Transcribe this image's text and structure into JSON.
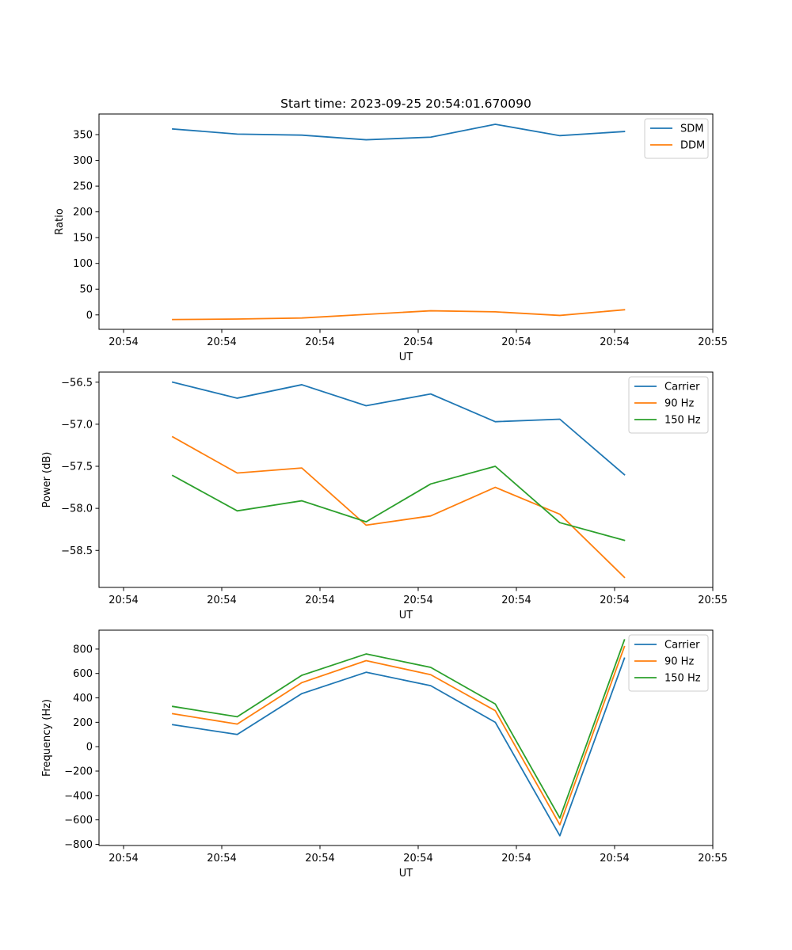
{
  "figure_title": "Start time: 2023-09-25 20:54:01.670090",
  "chart_data": [
    {
      "type": "line",
      "title": "Start time: 2023-09-25 20:54:01.670090",
      "xlabel": "UT",
      "ylabel": "Ratio",
      "xlim": [
        0,
        12.5
      ],
      "ylim": [
        -28,
        390
      ],
      "x_ticks": [
        0.5,
        2.5,
        4.5,
        6.5,
        8.5,
        10.5,
        12.5
      ],
      "x_tick_labels": [
        "20:54",
        "20:54",
        "20:54",
        "20:54",
        "20:54",
        "20:54",
        "20:55"
      ],
      "y_ticks": [
        0,
        50,
        100,
        150,
        200,
        250,
        300,
        350
      ],
      "y_tick_labels": [
        "0",
        "50",
        "100",
        "150",
        "200",
        "250",
        "300",
        "350"
      ],
      "legend_position": "top-right",
      "x": [
        1.5,
        2.815,
        4.13,
        5.44,
        6.755,
        8.07,
        9.385,
        10.7
      ],
      "series": [
        {
          "name": "SDM",
          "color": "#1f77b4",
          "values": [
            361,
            351,
            349,
            340,
            345,
            370,
            348,
            356
          ]
        },
        {
          "name": "DDM",
          "color": "#ff7f0e",
          "values": [
            -9,
            -8,
            -6,
            1,
            8,
            6,
            -1,
            10
          ]
        }
      ]
    },
    {
      "type": "line",
      "title": "",
      "xlabel": "UT",
      "ylabel": "Power (dB)",
      "xlim": [
        0,
        12.5
      ],
      "ylim": [
        -58.94,
        -56.38
      ],
      "x_ticks": [
        0.5,
        2.5,
        4.5,
        6.5,
        8.5,
        10.5,
        12.5
      ],
      "x_tick_labels": [
        "20:54",
        "20:54",
        "20:54",
        "20:54",
        "20:54",
        "20:54",
        "20:55"
      ],
      "y_ticks": [
        -58.5,
        -58.0,
        -57.5,
        -57.0,
        -56.5
      ],
      "y_tick_labels": [
        "−58.5",
        "−58.0",
        "−57.5",
        "−57.0",
        "−56.5"
      ],
      "legend_position": "top-right",
      "x": [
        1.5,
        2.815,
        4.13,
        5.44,
        6.755,
        8.07,
        9.385,
        10.7
      ],
      "series": [
        {
          "name": "Carrier",
          "color": "#1f77b4",
          "values": [
            -56.5,
            -56.69,
            -56.53,
            -56.78,
            -56.64,
            -56.97,
            -56.94,
            -57.6
          ]
        },
        {
          "name": "90 Hz",
          "color": "#ff7f0e",
          "values": [
            -57.15,
            -57.58,
            -57.52,
            -58.2,
            -58.09,
            -57.75,
            -58.07,
            -58.82
          ]
        },
        {
          "name": "150 Hz",
          "color": "#2ca02c",
          "values": [
            -57.61,
            -58.03,
            -57.91,
            -58.16,
            -57.71,
            -57.5,
            -58.17,
            -58.38
          ]
        }
      ]
    },
    {
      "type": "line",
      "title": "",
      "xlabel": "UT",
      "ylabel": "Frequency (Hz)",
      "xlim": [
        0,
        12.5
      ],
      "ylim": [
        -810,
        955
      ],
      "x_ticks": [
        0.5,
        2.5,
        4.5,
        6.5,
        8.5,
        10.5,
        12.5
      ],
      "x_tick_labels": [
        "20:54",
        "20:54",
        "20:54",
        "20:54",
        "20:54",
        "20:54",
        "20:55"
      ],
      "y_ticks": [
        -800,
        -600,
        -400,
        -200,
        0,
        200,
        400,
        600,
        800
      ],
      "y_tick_labels": [
        "−800",
        "−600",
        "−400",
        "−200",
        "0",
        "200",
        "400",
        "600",
        "800"
      ],
      "legend_position": "top-right",
      "x": [
        1.5,
        2.815,
        4.13,
        5.44,
        6.755,
        8.07,
        9.385,
        10.7
      ],
      "series": [
        {
          "name": "Carrier",
          "color": "#1f77b4",
          "values": [
            180,
            100,
            435,
            610,
            500,
            200,
            -730,
            725
          ]
        },
        {
          "name": "90 Hz",
          "color": "#ff7f0e",
          "values": [
            270,
            185,
            525,
            705,
            590,
            295,
            -640,
            820
          ]
        },
        {
          "name": "150 Hz",
          "color": "#2ca02c",
          "values": [
            330,
            245,
            585,
            760,
            650,
            350,
            -585,
            875
          ]
        }
      ]
    }
  ]
}
